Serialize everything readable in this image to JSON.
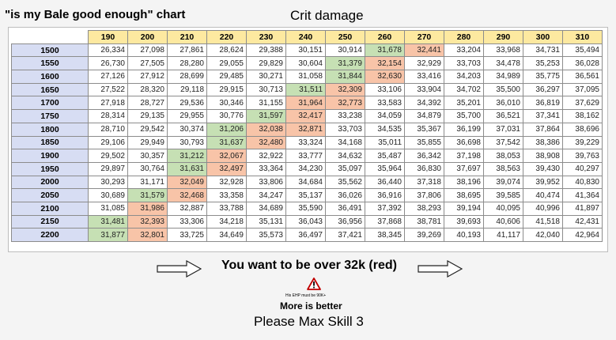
{
  "header": {
    "chart_title": "\"is my Bale good enough\" chart",
    "column_title": "Crit damage"
  },
  "table": {
    "columns": [
      "190",
      "200",
      "210",
      "220",
      "230",
      "240",
      "250",
      "260",
      "270",
      "280",
      "290",
      "300",
      "310"
    ],
    "rows": [
      {
        "label": "1500",
        "cells": [
          [
            "26,334",
            ""
          ],
          [
            "27,098",
            ""
          ],
          [
            "27,861",
            ""
          ],
          [
            "28,624",
            ""
          ],
          [
            "29,388",
            ""
          ],
          [
            "30,151",
            ""
          ],
          [
            "30,914",
            ""
          ],
          [
            "31,678",
            "green"
          ],
          [
            "32,441",
            "red"
          ],
          [
            "33,204",
            ""
          ],
          [
            "33,968",
            ""
          ],
          [
            "34,731",
            ""
          ],
          [
            "35,494",
            ""
          ]
        ]
      },
      {
        "label": "1550",
        "cells": [
          [
            "26,730",
            ""
          ],
          [
            "27,505",
            ""
          ],
          [
            "28,280",
            ""
          ],
          [
            "29,055",
            ""
          ],
          [
            "29,829",
            ""
          ],
          [
            "30,604",
            ""
          ],
          [
            "31,379",
            "green"
          ],
          [
            "32,154",
            "red"
          ],
          [
            "32,929",
            ""
          ],
          [
            "33,703",
            ""
          ],
          [
            "34,478",
            ""
          ],
          [
            "35,253",
            ""
          ],
          [
            "36,028",
            ""
          ]
        ]
      },
      {
        "label": "1600",
        "cells": [
          [
            "27,126",
            ""
          ],
          [
            "27,912",
            ""
          ],
          [
            "28,699",
            ""
          ],
          [
            "29,485",
            ""
          ],
          [
            "30,271",
            ""
          ],
          [
            "31,058",
            ""
          ],
          [
            "31,844",
            "green"
          ],
          [
            "32,630",
            "red"
          ],
          [
            "33,416",
            ""
          ],
          [
            "34,203",
            ""
          ],
          [
            "34,989",
            ""
          ],
          [
            "35,775",
            ""
          ],
          [
            "36,561",
            ""
          ]
        ]
      },
      {
        "label": "1650",
        "cells": [
          [
            "27,522",
            ""
          ],
          [
            "28,320",
            ""
          ],
          [
            "29,118",
            ""
          ],
          [
            "29,915",
            ""
          ],
          [
            "30,713",
            ""
          ],
          [
            "31,511",
            "green"
          ],
          [
            "32,309",
            "red"
          ],
          [
            "33,106",
            ""
          ],
          [
            "33,904",
            ""
          ],
          [
            "34,702",
            ""
          ],
          [
            "35,500",
            ""
          ],
          [
            "36,297",
            ""
          ],
          [
            "37,095",
            ""
          ]
        ]
      },
      {
        "label": "1700",
        "cells": [
          [
            "27,918",
            ""
          ],
          [
            "28,727",
            ""
          ],
          [
            "29,536",
            ""
          ],
          [
            "30,346",
            ""
          ],
          [
            "31,155",
            ""
          ],
          [
            "31,964",
            "red"
          ],
          [
            "32,773",
            "red"
          ],
          [
            "33,583",
            ""
          ],
          [
            "34,392",
            ""
          ],
          [
            "35,201",
            ""
          ],
          [
            "36,010",
            ""
          ],
          [
            "36,819",
            ""
          ],
          [
            "37,629",
            ""
          ]
        ]
      },
      {
        "label": "1750",
        "cells": [
          [
            "28,314",
            ""
          ],
          [
            "29,135",
            ""
          ],
          [
            "29,955",
            ""
          ],
          [
            "30,776",
            ""
          ],
          [
            "31,597",
            "green"
          ],
          [
            "32,417",
            "red"
          ],
          [
            "33,238",
            ""
          ],
          [
            "34,059",
            ""
          ],
          [
            "34,879",
            ""
          ],
          [
            "35,700",
            ""
          ],
          [
            "36,521",
            ""
          ],
          [
            "37,341",
            ""
          ],
          [
            "38,162",
            ""
          ]
        ]
      },
      {
        "label": "1800",
        "cells": [
          [
            "28,710",
            ""
          ],
          [
            "29,542",
            ""
          ],
          [
            "30,374",
            ""
          ],
          [
            "31,206",
            "green"
          ],
          [
            "32,038",
            "red"
          ],
          [
            "32,871",
            "red"
          ],
          [
            "33,703",
            ""
          ],
          [
            "34,535",
            ""
          ],
          [
            "35,367",
            ""
          ],
          [
            "36,199",
            ""
          ],
          [
            "37,031",
            ""
          ],
          [
            "37,864",
            ""
          ],
          [
            "38,696",
            ""
          ]
        ]
      },
      {
        "label": "1850",
        "cells": [
          [
            "29,106",
            ""
          ],
          [
            "29,949",
            ""
          ],
          [
            "30,793",
            ""
          ],
          [
            "31,637",
            "green"
          ],
          [
            "32,480",
            "red"
          ],
          [
            "33,324",
            ""
          ],
          [
            "34,168",
            ""
          ],
          [
            "35,011",
            ""
          ],
          [
            "35,855",
            ""
          ],
          [
            "36,698",
            ""
          ],
          [
            "37,542",
            ""
          ],
          [
            "38,386",
            ""
          ],
          [
            "39,229",
            ""
          ]
        ]
      },
      {
        "label": "1900",
        "cells": [
          [
            "29,502",
            ""
          ],
          [
            "30,357",
            ""
          ],
          [
            "31,212",
            "green"
          ],
          [
            "32,067",
            "red"
          ],
          [
            "32,922",
            ""
          ],
          [
            "33,777",
            ""
          ],
          [
            "34,632",
            ""
          ],
          [
            "35,487",
            ""
          ],
          [
            "36,342",
            ""
          ],
          [
            "37,198",
            ""
          ],
          [
            "38,053",
            ""
          ],
          [
            "38,908",
            ""
          ],
          [
            "39,763",
            ""
          ]
        ]
      },
      {
        "label": "1950",
        "cells": [
          [
            "29,897",
            ""
          ],
          [
            "30,764",
            ""
          ],
          [
            "31,631",
            "green"
          ],
          [
            "32,497",
            "red"
          ],
          [
            "33,364",
            ""
          ],
          [
            "34,230",
            ""
          ],
          [
            "35,097",
            ""
          ],
          [
            "35,964",
            ""
          ],
          [
            "36,830",
            ""
          ],
          [
            "37,697",
            ""
          ],
          [
            "38,563",
            ""
          ],
          [
            "39,430",
            ""
          ],
          [
            "40,297",
            ""
          ]
        ]
      },
      {
        "label": "2000",
        "cells": [
          [
            "30,293",
            ""
          ],
          [
            "31,171",
            ""
          ],
          [
            "32,049",
            "red"
          ],
          [
            "32,928",
            ""
          ],
          [
            "33,806",
            ""
          ],
          [
            "34,684",
            ""
          ],
          [
            "35,562",
            ""
          ],
          [
            "36,440",
            ""
          ],
          [
            "37,318",
            ""
          ],
          [
            "38,196",
            ""
          ],
          [
            "39,074",
            ""
          ],
          [
            "39,952",
            ""
          ],
          [
            "40,830",
            ""
          ]
        ]
      },
      {
        "label": "2050",
        "cells": [
          [
            "30,689",
            ""
          ],
          [
            "31,579",
            "green"
          ],
          [
            "32,468",
            "red"
          ],
          [
            "33,358",
            ""
          ],
          [
            "34,247",
            ""
          ],
          [
            "35,137",
            ""
          ],
          [
            "36,026",
            ""
          ],
          [
            "36,916",
            ""
          ],
          [
            "37,806",
            ""
          ],
          [
            "38,695",
            ""
          ],
          [
            "39,585",
            ""
          ],
          [
            "40,474",
            ""
          ],
          [
            "41,364",
            ""
          ]
        ]
      },
      {
        "label": "2100",
        "cells": [
          [
            "31,085",
            ""
          ],
          [
            "31,986",
            "red"
          ],
          [
            "32,887",
            ""
          ],
          [
            "33,788",
            ""
          ],
          [
            "34,689",
            ""
          ],
          [
            "35,590",
            ""
          ],
          [
            "36,491",
            ""
          ],
          [
            "37,392",
            ""
          ],
          [
            "38,293",
            ""
          ],
          [
            "39,194",
            ""
          ],
          [
            "40,095",
            ""
          ],
          [
            "40,996",
            ""
          ],
          [
            "41,897",
            ""
          ]
        ]
      },
      {
        "label": "2150",
        "cells": [
          [
            "31,481",
            "green"
          ],
          [
            "32,393",
            "red"
          ],
          [
            "33,306",
            ""
          ],
          [
            "34,218",
            ""
          ],
          [
            "35,131",
            ""
          ],
          [
            "36,043",
            ""
          ],
          [
            "36,956",
            ""
          ],
          [
            "37,868",
            ""
          ],
          [
            "38,781",
            ""
          ],
          [
            "39,693",
            ""
          ],
          [
            "40,606",
            ""
          ],
          [
            "41,518",
            ""
          ],
          [
            "42,431",
            ""
          ]
        ]
      },
      {
        "label": "2200",
        "cells": [
          [
            "31,877",
            "green"
          ],
          [
            "32,801",
            "red"
          ],
          [
            "33,725",
            ""
          ],
          [
            "34,649",
            ""
          ],
          [
            "35,573",
            ""
          ],
          [
            "36,497",
            ""
          ],
          [
            "37,421",
            ""
          ],
          [
            "38,345",
            ""
          ],
          [
            "39,269",
            ""
          ],
          [
            "40,193",
            ""
          ],
          [
            "41,117",
            ""
          ],
          [
            "42,040",
            ""
          ],
          [
            "42,964",
            ""
          ]
        ]
      }
    ]
  },
  "colors": {
    "header_fill": "#fde9a0",
    "row_header_fill": "#d7ddf3",
    "green": "#c6e0b4",
    "red": "#f8c4a8"
  },
  "footer": {
    "subtitle": "You want to be over 32k (red)",
    "left_arrow_icon": "arrow-right-outline-icon",
    "right_arrow_icon": "arrow-right-outline-icon",
    "warning_icon": "warning-triangle-icon",
    "small_note": "His EHP must be 90K+",
    "more_better": "More is better",
    "max_skill": "Please Max Skill 3"
  }
}
